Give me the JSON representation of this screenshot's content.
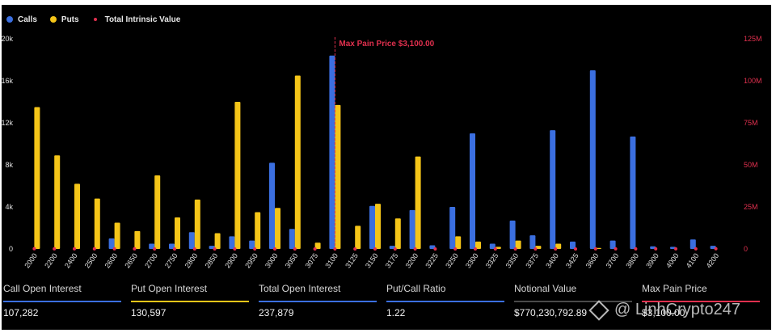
{
  "colors": {
    "calls": "#3b6fe0",
    "puts": "#f5c518",
    "intrinsic": "#e0304e",
    "background": "#000000",
    "max_pain_line": "#e0304e"
  },
  "legend": {
    "calls": "Calls",
    "puts": "Puts",
    "intrinsic": "Total Intrinsic Value"
  },
  "chart_data": {
    "type": "bar",
    "categories": [
      "2000",
      "2200",
      "2400",
      "2500",
      "2600",
      "2650",
      "2700",
      "2750",
      "2800",
      "2850",
      "2900",
      "2950",
      "3000",
      "3050",
      "3075",
      "3100",
      "3125",
      "3150",
      "3175",
      "3200",
      "3225",
      "3250",
      "3300",
      "3325",
      "3350",
      "3375",
      "3400",
      "3425",
      "3600",
      "3700",
      "3800",
      "3900",
      "4000",
      "4100",
      "4200"
    ],
    "series": [
      {
        "name": "Calls",
        "axis": "left",
        "values": [
          0,
          0,
          0,
          0,
          1000,
          0,
          500,
          500,
          1600,
          300,
          1200,
          800,
          8200,
          1900,
          0,
          18400,
          0,
          4100,
          300,
          3700,
          350,
          4000,
          11000,
          500,
          2700,
          1300,
          11300,
          700,
          17000,
          800,
          10700,
          250,
          200,
          900,
          300
        ]
      },
      {
        "name": "Puts",
        "axis": "left",
        "values": [
          13500,
          8900,
          6200,
          4800,
          2500,
          1700,
          7000,
          3000,
          4700,
          1500,
          14000,
          3500,
          3900,
          16500,
          600,
          13700,
          2200,
          4300,
          2900,
          8800,
          0,
          1200,
          700,
          200,
          800,
          300,
          500,
          0,
          100,
          0,
          0,
          0,
          0,
          0,
          0
        ]
      },
      {
        "name": "Total Intrinsic Value",
        "axis": "right",
        "values": [
          103000,
          80000,
          58000,
          47000,
          40000,
          34000,
          30000,
          26000,
          22000,
          18000,
          14000,
          10000,
          7500,
          6000,
          5500,
          5500,
          6000,
          6500,
          7000,
          7500,
          8000,
          9000,
          11000,
          12000,
          13000,
          15000,
          18000,
          21000,
          33000,
          43000,
          52000,
          63000,
          74000,
          85000,
          96000
        ]
      }
    ],
    "y_left": {
      "ticks": [
        "0",
        "4k",
        "8k",
        "12k",
        "16k",
        "20k"
      ],
      "range": [
        0,
        20000
      ]
    },
    "y_right": {
      "ticks": [
        "0",
        "25M",
        "50M",
        "75M",
        "100M",
        "125M"
      ],
      "range": [
        0,
        125000000
      ]
    },
    "annotation": {
      "label": "Max Pain Price $3,100.00",
      "category": "3100"
    },
    "legend_position": "top-left",
    "grid": false
  },
  "stats": [
    {
      "label": "Call Open Interest",
      "value": "107,282",
      "color": "#3b6fe0"
    },
    {
      "label": "Put Open Interest",
      "value": "130,597",
      "color": "#f5c518"
    },
    {
      "label": "Total Open Interest",
      "value": "237,879",
      "color": "#3b6fe0"
    },
    {
      "label": "Put/Call Ratio",
      "value": "1.22",
      "color": "#3b6fe0"
    },
    {
      "label": "Notional Value",
      "value": "$770,230,792.89",
      "color": "#4a4a4a"
    },
    {
      "label": "Max Pain Price",
      "value": "$3,100.00",
      "color": "#e0304e"
    }
  ],
  "watermark": "@ LinhCrypto247"
}
